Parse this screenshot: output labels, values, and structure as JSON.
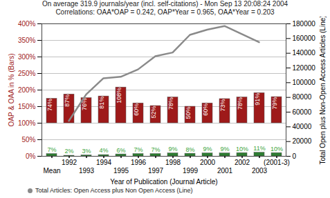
{
  "chart_data": {
    "type": "bar",
    "title": "On average 319.9 journals/year (incl. self-citations) - Mon Sep 13 20:08:24 2004",
    "subtitle": "Correlations: OAA*OAP = 0.242, OAP*Year = 0.965, OAA*Year = 0.203",
    "xlabel": "Year of Publication (Journal Article)",
    "ylabel": "OAP & OAA in % (Bars)",
    "y2label": "Total Open plus Non-Open Access Articles (Line)",
    "categories": [
      "Mean",
      "1992",
      "1993",
      "1994",
      "1995",
      "1996",
      "1997",
      "1998",
      "1999",
      "2000",
      "2001",
      "2002",
      "2003",
      "(2001-3)"
    ],
    "series": [
      {
        "type": "bar",
        "color": "#9e1a1a",
        "base": 100,
        "values": [
          74,
          87,
          76,
          81,
          108,
          60,
          52,
          78,
          50,
          60,
          73,
          78,
          91,
          79
        ],
        "value_labels": [
          "74%",
          "87%",
          "76%",
          "81%",
          "108%",
          "60%",
          "52%",
          "78%",
          "50%",
          "60%",
          "73%",
          "78%",
          "91%",
          "79%"
        ]
      },
      {
        "type": "bar",
        "color": "#2e7d32",
        "values": [
          7,
          2,
          3,
          4,
          6,
          7,
          7,
          9,
          8,
          9,
          9,
          10,
          11,
          10
        ],
        "value_labels": [
          "7%",
          "2%",
          "3%",
          "4%",
          "6%",
          "7%",
          "7%",
          "9%",
          "8%",
          "9%",
          "9%",
          "10%",
          "11%",
          "10%"
        ]
      },
      {
        "type": "line",
        "axis": "y2",
        "color": "#8a8a8a",
        "name": "Total Articles: Open Access plus Non Open Access (Line)",
        "values": [
          null,
          48000,
          84000,
          106000,
          108000,
          118000,
          136000,
          141000,
          165000,
          172000,
          177000,
          166000,
          155000,
          null
        ]
      }
    ],
    "ylim": [
      0,
      400
    ],
    "yticks": [
      {
        "value": 0,
        "label": "0%"
      },
      {
        "value": 50,
        "label": "50%"
      },
      {
        "value": 100,
        "label": "100%"
      },
      {
        "value": 150,
        "label": "150%"
      },
      {
        "value": 200,
        "label": "200%"
      },
      {
        "value": 250,
        "label": "250%"
      },
      {
        "value": 300,
        "label": "300%"
      },
      {
        "value": 350,
        "label": "350%"
      },
      {
        "value": 400,
        "label": "400%"
      }
    ],
    "y2lim": [
      0,
      180000
    ],
    "y2ticks": [
      0,
      20000,
      40000,
      60000,
      80000,
      100000,
      120000,
      140000,
      160000,
      180000
    ],
    "grid": true,
    "data_labels": true,
    "legend": "bottom"
  }
}
